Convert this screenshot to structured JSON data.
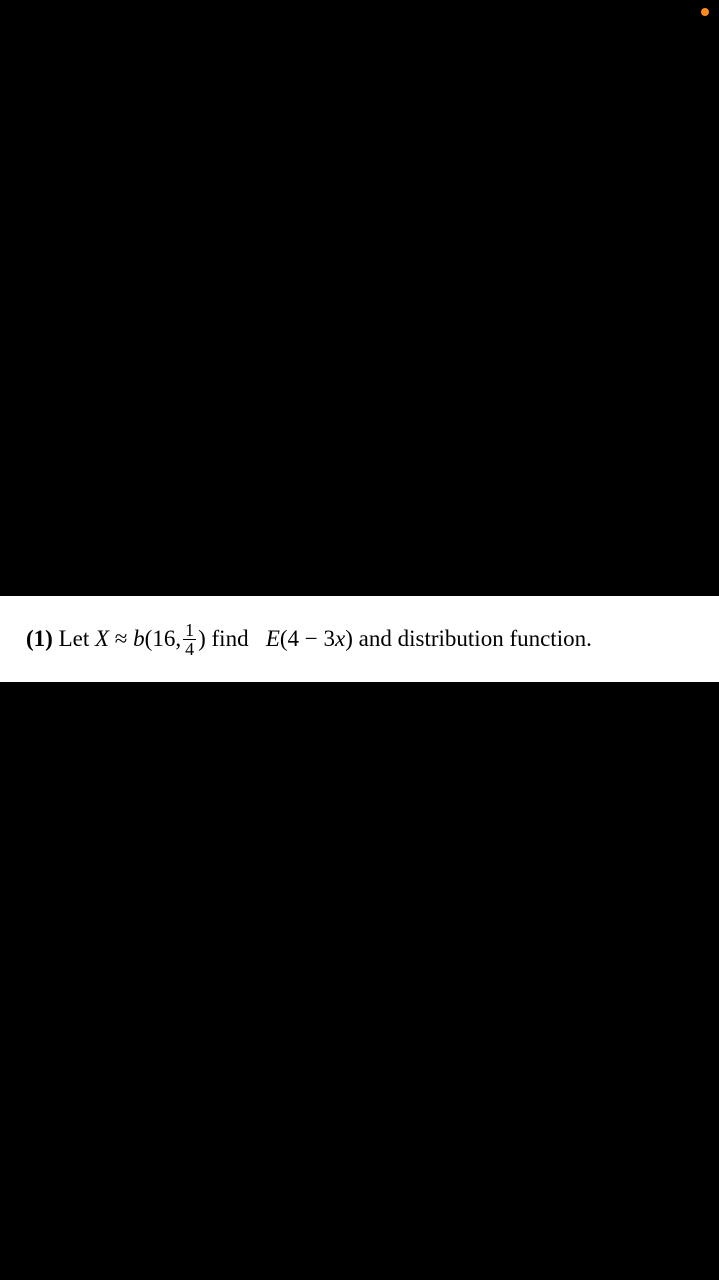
{
  "status": {
    "dot_color": "#ff8c1a"
  },
  "strip": {
    "background_color": "#ffffff",
    "text_color": "#000000"
  },
  "problem": {
    "label": "(1)",
    "let": " Let ",
    "var": "X",
    "approx": " ≈ ",
    "dist_name": "b",
    "open_paren": "(16,",
    "frac_num": "1",
    "frac_den": "4",
    "close_paren": ")",
    "find": " find   ",
    "expectation_E": "E",
    "expectation_arg": "(4 − 3",
    "expectation_x": "x",
    "expectation_close": ")",
    "tail": " and distribution function."
  }
}
